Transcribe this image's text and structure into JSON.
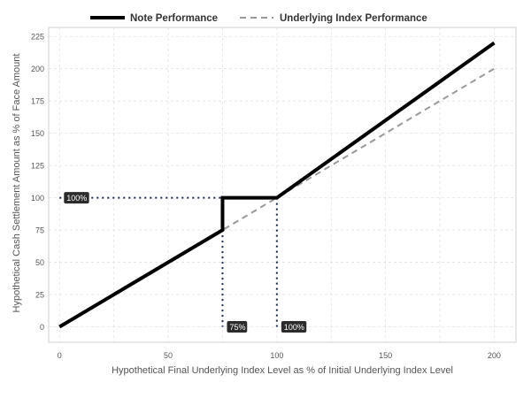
{
  "chart_data": {
    "type": "line",
    "xlabel": "Hypothetical Final Underlying Index Level as % of Initial Underlying Index Level",
    "ylabel": "Hypothetical Cash Settlement Amount as % of Face Amount",
    "xlim": [
      -5,
      210
    ],
    "ylim": [
      -12,
      232
    ],
    "x_ticks": [
      0,
      50,
      100,
      150,
      200
    ],
    "y_ticks": [
      0,
      25,
      50,
      75,
      100,
      125,
      150,
      175,
      200,
      225
    ],
    "grid": true,
    "legend_position": "top",
    "series": [
      {
        "name": "Note Performance",
        "style": "solid",
        "color": "#000000",
        "x": [
          0,
          75,
          75,
          100,
          200
        ],
        "y": [
          0,
          75,
          100,
          100,
          220
        ]
      },
      {
        "name": "Underlying Index Performance",
        "style": "dashed",
        "color": "#999999",
        "x": [
          0,
          200
        ],
        "y": [
          0,
          200
        ]
      }
    ],
    "reference_lines": [
      {
        "from": [
          0,
          100
        ],
        "to": [
          100,
          100
        ],
        "style": "dotted"
      },
      {
        "from": [
          75,
          75
        ],
        "to": [
          75,
          0
        ],
        "style": "dotted"
      },
      {
        "from": [
          100,
          100
        ],
        "to": [
          100,
          0
        ],
        "style": "dotted"
      }
    ],
    "annotations": [
      {
        "text": "100%",
        "x": 0,
        "y": 100
      },
      {
        "text": "75%",
        "x": 75,
        "y": 0
      },
      {
        "text": "100%",
        "x": 100,
        "y": 0
      }
    ]
  }
}
